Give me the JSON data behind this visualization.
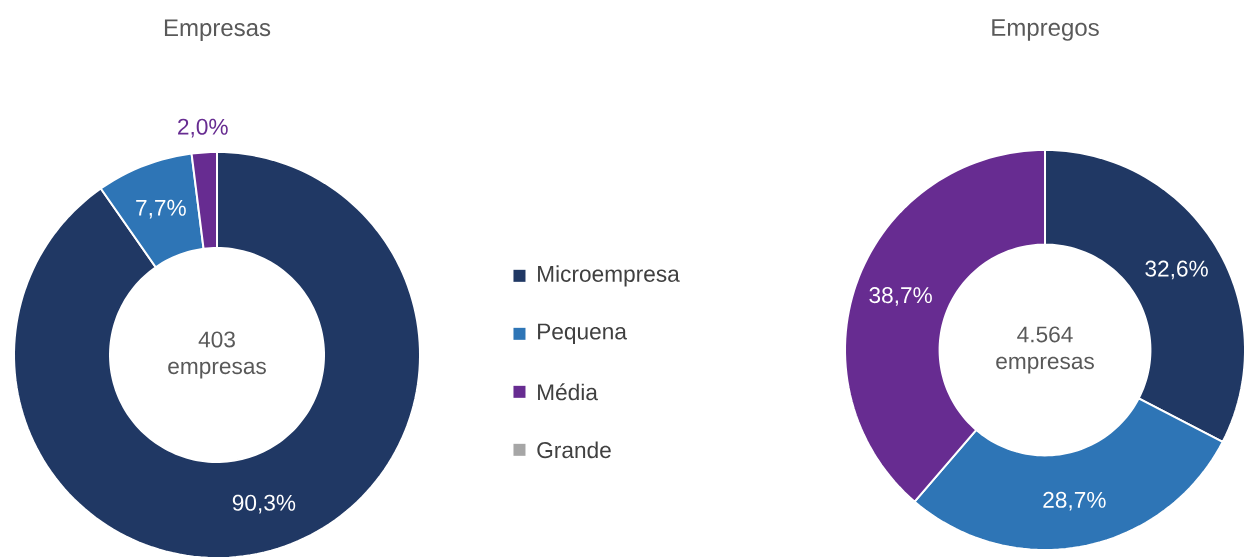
{
  "chart_data": [
    {
      "type": "donut",
      "title": "Empresas",
      "categories": [
        "Microempresa",
        "Pequena",
        "Média",
        "Grande"
      ],
      "values": [
        90.3,
        7.7,
        2.0,
        0
      ],
      "colors": [
        "#203864",
        "#2e75b6",
        "#672c91",
        "#a6a6a6"
      ],
      "value_labels": [
        "90,3%",
        "7,7%",
        "2,0%",
        null
      ],
      "annotations": [
        "403 empresas"
      ],
      "legend": "right"
    },
    {
      "type": "donut",
      "title": "Empregos",
      "categories": [
        null,
        null,
        null,
        null
      ],
      "values": [
        32.6,
        28.7,
        38.7,
        0
      ],
      "colors": [
        "#203864",
        "#2e75b6",
        "#672c91",
        "#a6a6a6"
      ],
      "value_labels": [
        "32,6%",
        "28,7%",
        "38,7%",
        null
      ],
      "annotations": [
        "4.564 empresas"
      ]
    }
  ]
}
